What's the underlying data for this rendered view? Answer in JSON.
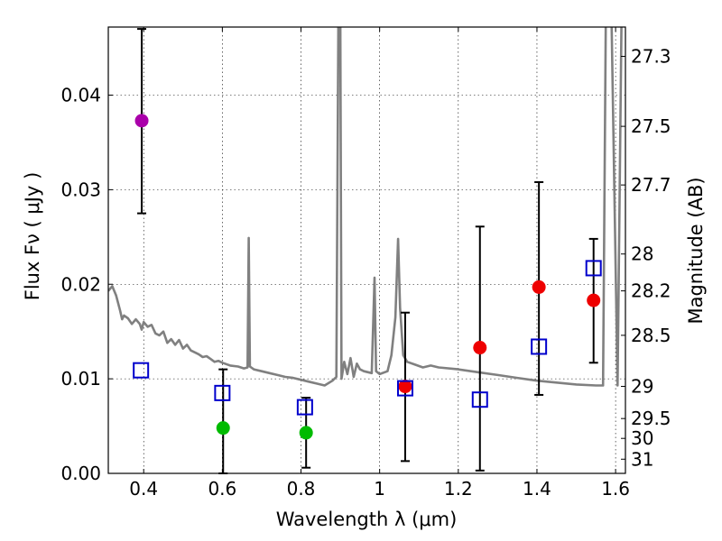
{
  "chart_data": {
    "type": "scatter",
    "xlabel": "Wavelength  λ (μm)",
    "ylabel": "Flux  Fν  ( μJy )",
    "ylabel_right": "Magnitude (AB)",
    "xlim": [
      0.31,
      1.625
    ],
    "ylim": [
      0.0,
      0.0472
    ],
    "grid": true,
    "x_ticks": [
      0.4,
      0.6,
      0.8,
      1.0,
      1.2,
      1.4,
      1.6
    ],
    "x_tick_labels": [
      "0.4",
      "0.6",
      "0.8",
      "1",
      "1.2",
      "1.4",
      "1.6"
    ],
    "y_ticks": [
      0.0,
      0.01,
      0.02,
      0.03,
      0.04
    ],
    "y_tick_labels": [
      "0.00",
      "0.01",
      "0.02",
      "0.03",
      "0.04"
    ],
    "mag_ticks": [
      {
        "label": "27.3",
        "flux": 0.0441
      },
      {
        "label": "27.5",
        "flux": 0.0367
      },
      {
        "label": "27.7",
        "flux": 0.0305
      },
      {
        "label": "28",
        "flux": 0.0232
      },
      {
        "label": "28.2",
        "flux": 0.0193
      },
      {
        "label": "28.5",
        "flux": 0.0146
      },
      {
        "label": "29",
        "flux": 0.0092
      },
      {
        "label": "29.5",
        "flux": 0.0058
      },
      {
        "label": "30",
        "flux": 0.0037
      },
      {
        "label": "31",
        "flux": 0.0015
      }
    ],
    "series": [
      {
        "name": "photometry-violet",
        "marker": "circle",
        "color": "#aa00aa",
        "points": [
          {
            "x": 0.395,
            "y": 0.0373,
            "err_lo": 0.0275,
            "err_hi": 0.047
          }
        ]
      },
      {
        "name": "photometry-green",
        "marker": "circle",
        "color": "#00bb00",
        "points": [
          {
            "x": 0.602,
            "y": 0.0048,
            "err_lo": 0.0,
            "err_hi": 0.011
          },
          {
            "x": 0.813,
            "y": 0.0043,
            "err_lo": 0.0006,
            "err_hi": 0.008
          }
        ]
      },
      {
        "name": "photometry-red",
        "marker": "circle",
        "color": "#ee0000",
        "points": [
          {
            "x": 1.065,
            "y": 0.0092,
            "err_lo": 0.0013,
            "err_hi": 0.017
          },
          {
            "x": 1.255,
            "y": 0.0133,
            "err_lo": 0.0003,
            "err_hi": 0.0261
          },
          {
            "x": 1.405,
            "y": 0.0197,
            "err_lo": 0.0083,
            "err_hi": 0.0308
          },
          {
            "x": 1.544,
            "y": 0.0183,
            "err_lo": 0.0117,
            "err_hi": 0.0248
          }
        ]
      },
      {
        "name": "model-photometry",
        "marker": "open-square",
        "color": "#0000cc",
        "points": [
          {
            "x": 0.393,
            "y": 0.0109
          },
          {
            "x": 0.6,
            "y": 0.0085
          },
          {
            "x": 0.81,
            "y": 0.007
          },
          {
            "x": 1.065,
            "y": 0.009
          },
          {
            "x": 1.255,
            "y": 0.0078
          },
          {
            "x": 1.405,
            "y": 0.0134
          },
          {
            "x": 1.544,
            "y": 0.0217
          }
        ]
      },
      {
        "name": "template-spectrum",
        "marker": "line",
        "color": "#808080",
        "points": [
          [
            0.31,
            0.0193
          ],
          [
            0.32,
            0.0198
          ],
          [
            0.33,
            0.0188
          ],
          [
            0.34,
            0.0172
          ],
          [
            0.345,
            0.0163
          ],
          [
            0.35,
            0.0167
          ],
          [
            0.36,
            0.0164
          ],
          [
            0.37,
            0.0158
          ],
          [
            0.38,
            0.0163
          ],
          [
            0.39,
            0.0158
          ],
          [
            0.395,
            0.0152
          ],
          [
            0.4,
            0.016
          ],
          [
            0.41,
            0.0155
          ],
          [
            0.42,
            0.0157
          ],
          [
            0.43,
            0.0148
          ],
          [
            0.44,
            0.0146
          ],
          [
            0.45,
            0.015
          ],
          [
            0.46,
            0.0138
          ],
          [
            0.47,
            0.0142
          ],
          [
            0.48,
            0.0136
          ],
          [
            0.49,
            0.0141
          ],
          [
            0.5,
            0.0132
          ],
          [
            0.51,
            0.0136
          ],
          [
            0.52,
            0.013
          ],
          [
            0.53,
            0.0128
          ],
          [
            0.54,
            0.0126
          ],
          [
            0.55,
            0.0123
          ],
          [
            0.56,
            0.0124
          ],
          [
            0.57,
            0.0121
          ],
          [
            0.58,
            0.0118
          ],
          [
            0.59,
            0.0119
          ],
          [
            0.6,
            0.0117
          ],
          [
            0.62,
            0.0114
          ],
          [
            0.64,
            0.0113
          ],
          [
            0.655,
            0.0111
          ],
          [
            0.664,
            0.0112
          ],
          [
            0.667,
            0.0249
          ],
          [
            0.67,
            0.0113
          ],
          [
            0.68,
            0.011
          ],
          [
            0.7,
            0.0108
          ],
          [
            0.72,
            0.0106
          ],
          [
            0.74,
            0.0104
          ],
          [
            0.76,
            0.0102
          ],
          [
            0.78,
            0.0101
          ],
          [
            0.8,
            0.0099
          ],
          [
            0.82,
            0.0097
          ],
          [
            0.84,
            0.0095
          ],
          [
            0.86,
            0.0093
          ],
          [
            0.88,
            0.0098
          ],
          [
            0.89,
            0.0102
          ],
          [
            0.895,
            0.0475
          ],
          [
            0.9,
            0.0475
          ],
          [
            0.903,
            0.01
          ],
          [
            0.91,
            0.0118
          ],
          [
            0.918,
            0.0105
          ],
          [
            0.926,
            0.0122
          ],
          [
            0.934,
            0.0102
          ],
          [
            0.942,
            0.0116
          ],
          [
            0.95,
            0.011
          ],
          [
            0.96,
            0.0108
          ],
          [
            0.98,
            0.0106
          ],
          [
            0.987,
            0.0207
          ],
          [
            0.991,
            0.0108
          ],
          [
            1.0,
            0.0105
          ],
          [
            1.02,
            0.0108
          ],
          [
            1.03,
            0.0125
          ],
          [
            1.04,
            0.0165
          ],
          [
            1.047,
            0.0248
          ],
          [
            1.052,
            0.0175
          ],
          [
            1.06,
            0.0125
          ],
          [
            1.07,
            0.0118
          ],
          [
            1.09,
            0.0115
          ],
          [
            1.11,
            0.0112
          ],
          [
            1.13,
            0.0114
          ],
          [
            1.15,
            0.0112
          ],
          [
            1.2,
            0.011
          ],
          [
            1.25,
            0.0107
          ],
          [
            1.3,
            0.0104
          ],
          [
            1.35,
            0.0101
          ],
          [
            1.4,
            0.0098
          ],
          [
            1.45,
            0.0096
          ],
          [
            1.5,
            0.0094
          ],
          [
            1.55,
            0.0093
          ],
          [
            1.568,
            0.0093
          ],
          [
            1.575,
            0.0475
          ],
          [
            1.59,
            0.0475
          ],
          [
            1.605,
            0.0093
          ],
          [
            1.615,
            0.0475
          ]
        ]
      }
    ]
  }
}
